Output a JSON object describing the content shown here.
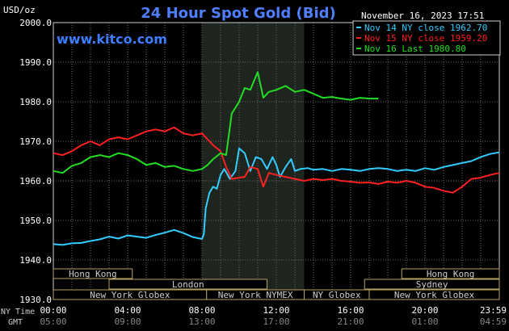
{
  "chart_data": {
    "type": "line",
    "title": "24 Hour Spot Gold (Bid)",
    "timestamp": "November 16, 2023 17:51",
    "y_unit_label": "USD/oz",
    "watermark": "www.kitco.com",
    "ylim": [
      1930.0,
      2000.0
    ],
    "yticks": [
      "1930.0",
      "1940.0",
      "1950.0",
      "1960.0",
      "1970.0",
      "1980.0",
      "1990.0",
      "2000.0"
    ],
    "x_row_labels": {
      "ny": "NY Time",
      "gmt": "GMT"
    },
    "xticks_ny": [
      "00:00",
      "04:00",
      "08:00",
      "12:00",
      "16:00",
      "20:00",
      "23:59"
    ],
    "xticks_gmt": [
      "05:00",
      "09:00",
      "13:00",
      "17:00",
      "21:00",
      "01:00",
      "04:59"
    ],
    "x_range_hours": [
      0,
      24
    ],
    "grid": true,
    "legend_position": "top-right",
    "legend": [
      {
        "text": "Nov 14 NY close 1962.70",
        "color": "#33ccff"
      },
      {
        "text": "Nov 15 NY close 1959.20",
        "color": "#ff2020"
      },
      {
        "text": "Nov 16 Last 1980.80",
        "color": "#22dd22"
      }
    ],
    "highlight_band": {
      "start_hour": 8.0,
      "end_hour": 13.5
    },
    "sessions": [
      {
        "name": "Hong Kong",
        "row": 0,
        "start": 0,
        "end": 4.25
      },
      {
        "name": "Hong Kong",
        "row": 0,
        "start": 18.75,
        "end": 24
      },
      {
        "name": "London",
        "row": 1,
        "start": 3,
        "end": 11.5
      },
      {
        "name": "Sydney",
        "row": 1,
        "start": 16.75,
        "end": 24
      },
      {
        "name": "New York Globex",
        "row": 2,
        "start": 0,
        "end": 8.25
      },
      {
        "name": "New York NYMEX",
        "row": 2,
        "start": 8.25,
        "end": 13.5
      },
      {
        "name": "NY Globex",
        "row": 2,
        "start": 13.5,
        "end": 17
      },
      {
        "name": "New York Globex",
        "row": 2,
        "start": 17,
        "end": 24
      }
    ],
    "series": [
      {
        "name": "Nov 14",
        "color": "#33ccff",
        "x": [
          0,
          0.5,
          1,
          1.5,
          2,
          2.5,
          3,
          3.5,
          4,
          4.5,
          5,
          5.5,
          6,
          6.5,
          7,
          7.5,
          8,
          8.1,
          8.2,
          8.4,
          8.6,
          8.8,
          9,
          9.2,
          9.5,
          9.8,
          10,
          10.3,
          10.6,
          10.9,
          11.2,
          11.5,
          11.8,
          12,
          12.2,
          12.5,
          12.8,
          13,
          13.3,
          13.7,
          14,
          14.5,
          15,
          15.5,
          16,
          16.5,
          17,
          17.5,
          18,
          18.5,
          19,
          19.5,
          20,
          20.5,
          21,
          21.5,
          22,
          22.5,
          23,
          23.5,
          24
        ],
        "values": [
          1944.0,
          1943.8,
          1944.2,
          1944.3,
          1944.8,
          1945.2,
          1945.9,
          1945.4,
          1946.2,
          1945.9,
          1945.6,
          1946.3,
          1946.9,
          1947.6,
          1946.8,
          1945.8,
          1945.3,
          1946.5,
          1953.0,
          1957.0,
          1958.5,
          1958.0,
          1961.5,
          1963.0,
          1960.5,
          1962.5,
          1968.2,
          1967.0,
          1962.5,
          1966.0,
          1965.5,
          1963.0,
          1966.0,
          1964.0,
          1961.0,
          1963.5,
          1965.5,
          1962.5,
          1963.0,
          1963.2,
          1962.8,
          1963.0,
          1962.5,
          1963.0,
          1962.8,
          1962.5,
          1963.0,
          1963.2,
          1963.0,
          1962.5,
          1962.8,
          1962.5,
          1963.2,
          1962.8,
          1963.5,
          1964.0,
          1964.5,
          1965.0,
          1966.0,
          1966.8,
          1967.2
        ]
      },
      {
        "name": "Nov 15",
        "color": "#ff2020",
        "x": [
          0,
          0.5,
          1,
          1.5,
          2,
          2.5,
          3,
          3.5,
          4,
          4.5,
          5,
          5.5,
          6,
          6.5,
          7,
          7.5,
          8,
          8.3,
          8.6,
          9,
          9.3,
          9.6,
          10,
          10.3,
          10.6,
          11,
          11.3,
          11.6,
          12,
          12.5,
          13,
          13.5,
          14,
          14.5,
          15,
          15.5,
          16,
          16.5,
          17,
          17.5,
          18,
          18.5,
          19,
          19.5,
          20,
          20.5,
          21,
          21.5,
          22,
          22.5,
          23,
          23.5,
          24
        ],
        "values": [
          1967.0,
          1966.5,
          1967.5,
          1969.0,
          1970.0,
          1969.0,
          1970.5,
          1971.0,
          1970.5,
          1971.5,
          1972.5,
          1973.0,
          1972.5,
          1973.5,
          1972.0,
          1971.5,
          1972.0,
          1970.5,
          1969.0,
          1967.5,
          1963.5,
          1960.5,
          1960.8,
          1961.0,
          1963.5,
          1963.0,
          1958.5,
          1962.0,
          1961.5,
          1961.0,
          1960.5,
          1960.0,
          1960.5,
          1960.2,
          1960.5,
          1960.0,
          1959.8,
          1959.5,
          1959.6,
          1959.2,
          1959.8,
          1959.5,
          1960.0,
          1959.5,
          1958.5,
          1958.2,
          1957.5,
          1957.0,
          1958.5,
          1960.5,
          1960.8,
          1961.5,
          1962.0
        ]
      },
      {
        "name": "Nov 16",
        "color": "#22dd22",
        "x": [
          0,
          0.5,
          1,
          1.5,
          2,
          2.5,
          3,
          3.5,
          4,
          4.5,
          5,
          5.5,
          6,
          6.5,
          7,
          7.5,
          8,
          8.3,
          8.6,
          9,
          9.3,
          9.6,
          10,
          10.3,
          10.6,
          11,
          11.3,
          11.6,
          12,
          12.5,
          13,
          13.5,
          14,
          14.5,
          15,
          15.5,
          16,
          16.5,
          17,
          17.5
        ],
        "values": [
          1962.5,
          1962.0,
          1963.8,
          1964.5,
          1966.0,
          1966.5,
          1966.0,
          1967.0,
          1966.5,
          1965.5,
          1964.0,
          1964.5,
          1963.5,
          1963.8,
          1963.0,
          1962.5,
          1963.0,
          1964.0,
          1965.5,
          1967.0,
          1966.5,
          1977.0,
          1980.0,
          1983.5,
          1983.0,
          1987.5,
          1981.0,
          1982.5,
          1983.0,
          1984.0,
          1982.5,
          1983.0,
          1982.0,
          1981.0,
          1981.2,
          1980.8,
          1980.5,
          1981.0,
          1980.8,
          1980.8
        ]
      }
    ]
  }
}
